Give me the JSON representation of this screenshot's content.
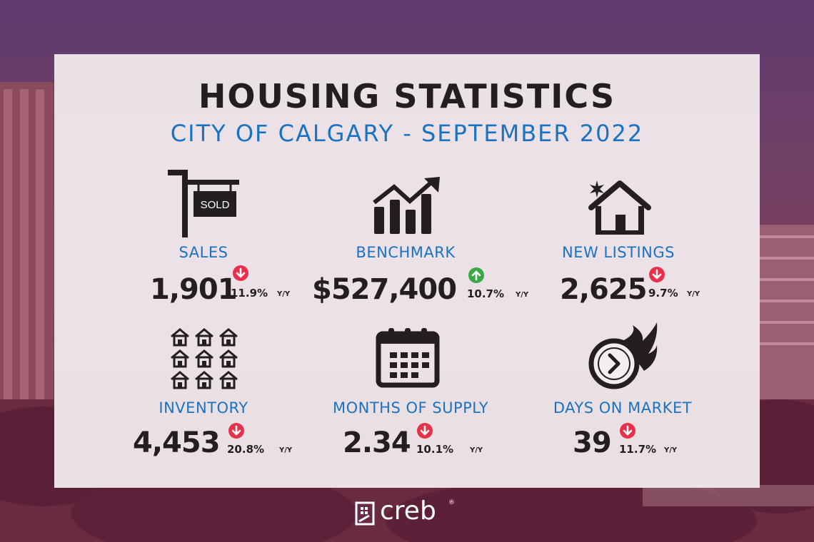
{
  "header": {
    "title": "HOUSING STATISTICS",
    "subtitle": "CITY OF CALGARY - SEPTEMBER 2022"
  },
  "stats": [
    {
      "label": "SALES",
      "value": "1,901",
      "change": "11.9%",
      "period": "Y/Y",
      "direction": "down",
      "icon": "sold-sign-icon"
    },
    {
      "label": "BENCHMARK",
      "value": "$527,400",
      "change": "10.7%",
      "period": "Y/Y",
      "direction": "up",
      "icon": "trending-chart-icon"
    },
    {
      "label": "NEW LISTINGS",
      "value": "2,625",
      "change": "9.7%",
      "period": "Y/Y",
      "direction": "down",
      "icon": "new-house-icon"
    },
    {
      "label": "INVENTORY",
      "value": "4,453",
      "change": "20.8%",
      "period": "Y/Y",
      "direction": "down",
      "icon": "houses-grid-icon"
    },
    {
      "label": "MONTHS OF SUPPLY",
      "value": "2.34",
      "change": "10.1%",
      "period": "Y/Y",
      "direction": "down",
      "icon": "calendar-icon"
    },
    {
      "label": "DAYS ON MARKET",
      "value": "39",
      "change": "11.7%",
      "period": "Y/Y",
      "direction": "down",
      "icon": "fast-clock-icon"
    }
  ],
  "sold_sign_text": "SOLD",
  "brand": {
    "name": "creb",
    "registered": "®"
  },
  "colors": {
    "accent": "#1a73c2",
    "down": "#e8304a",
    "up": "#3aa845",
    "text": "#231f20"
  }
}
